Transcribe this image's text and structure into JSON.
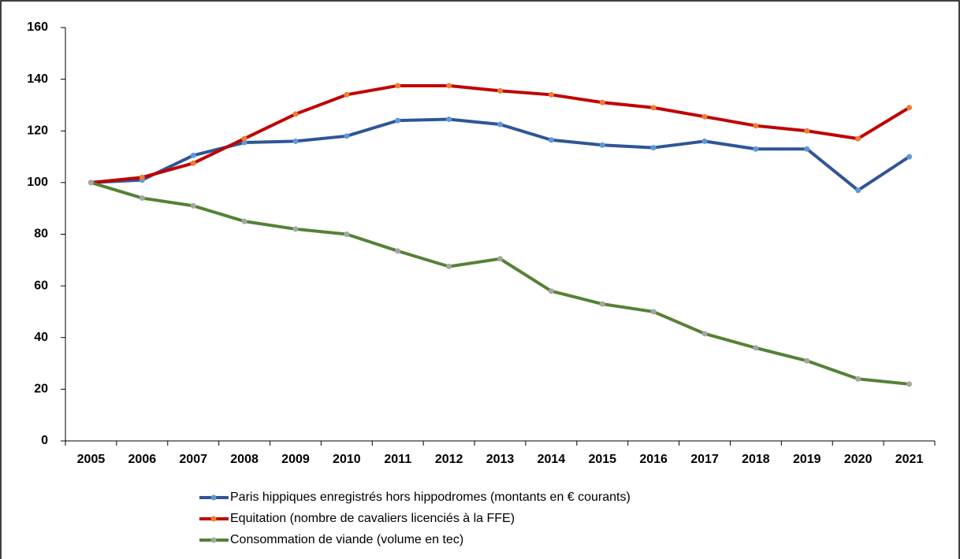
{
  "chart_data": {
    "type": "line",
    "categories": [
      "2005",
      "2006",
      "2007",
      "2008",
      "2009",
      "2010",
      "2011",
      "2012",
      "2013",
      "2014",
      "2015",
      "2016",
      "2017",
      "2018",
      "2019",
      "2020",
      "2021"
    ],
    "series": [
      {
        "name": "Paris hippiques enregistrés hors hippodromes (montants en € courants)",
        "color": "#2f5597",
        "marker_color": "#5b9bd5",
        "values": [
          100,
          101,
          110.5,
          115.5,
          116,
          118,
          124,
          124.5,
          122.5,
          116.5,
          114.5,
          113.5,
          116,
          113,
          113,
          97,
          110
        ]
      },
      {
        "name": "Equitation (nombre de cavaliers licenciés à la FFE)",
        "color": "#c00000",
        "marker_color": "#ed7d31",
        "values": [
          100,
          102,
          107.5,
          117,
          126.5,
          134,
          137.5,
          137.5,
          135.5,
          134,
          131,
          129,
          125.5,
          122,
          120,
          117,
          129
        ]
      },
      {
        "name": "Consommation de viande (volume en tec)",
        "color": "#548235",
        "marker_color": "#a5a5a5",
        "values": [
          100,
          94,
          91,
          85,
          82,
          80,
          73.5,
          67.5,
          70.5,
          58,
          53,
          50,
          41.5,
          36,
          31,
          24,
          22
        ]
      }
    ],
    "ylim": [
      0,
      160
    ],
    "yticks": [
      0,
      20,
      40,
      60,
      80,
      100,
      120,
      140,
      160
    ],
    "grid": false
  }
}
